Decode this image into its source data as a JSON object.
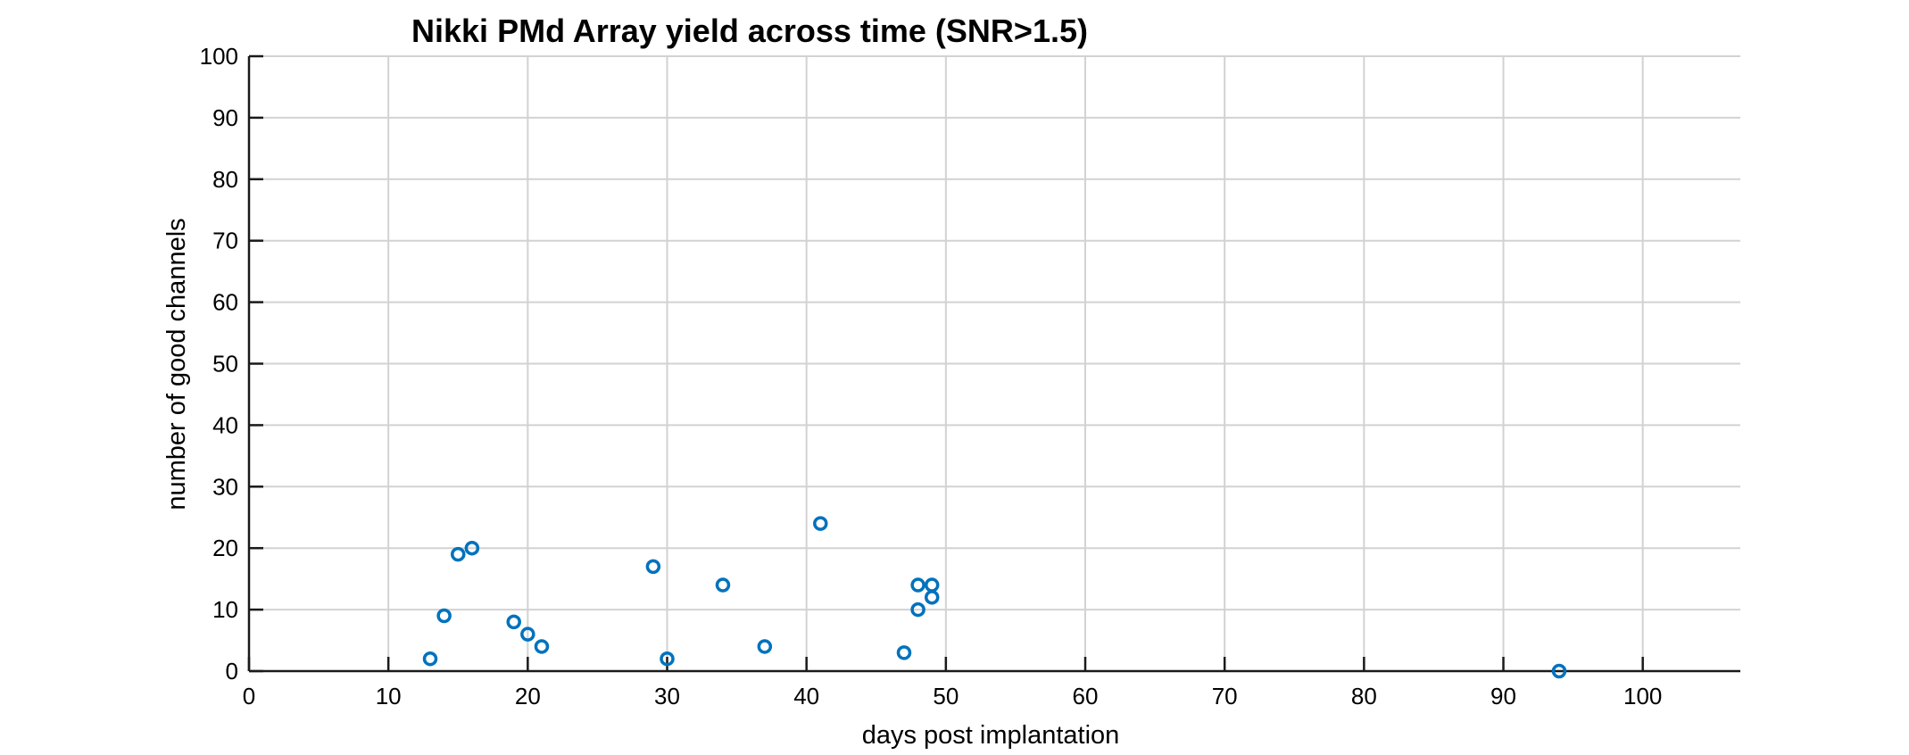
{
  "chart_data": {
    "type": "scatter",
    "title": "Nikki PMd Array yield across time (SNR>1.5)",
    "xlabel": "days post implantation",
    "ylabel": "number of good channels",
    "xlim": [
      0,
      107
    ],
    "ylim": [
      0,
      100
    ],
    "xticks": [
      0,
      10,
      20,
      30,
      40,
      50,
      60,
      70,
      80,
      90,
      100
    ],
    "yticks": [
      0,
      10,
      20,
      30,
      40,
      50,
      60,
      70,
      80,
      90,
      100
    ],
    "grid": true,
    "marker": "circle",
    "marker_color": "#0072BD",
    "series": [
      {
        "points": [
          {
            "x": 13,
            "y": 2
          },
          {
            "x": 14,
            "y": 9
          },
          {
            "x": 15,
            "y": 19
          },
          {
            "x": 16,
            "y": 20
          },
          {
            "x": 19,
            "y": 8
          },
          {
            "x": 20,
            "y": 6
          },
          {
            "x": 21,
            "y": 4
          },
          {
            "x": 29,
            "y": 17
          },
          {
            "x": 30,
            "y": 2
          },
          {
            "x": 34,
            "y": 14
          },
          {
            "x": 37,
            "y": 4
          },
          {
            "x": 41,
            "y": 24
          },
          {
            "x": 47,
            "y": 3
          },
          {
            "x": 48,
            "y": 14
          },
          {
            "x": 48,
            "y": 10
          },
          {
            "x": 49,
            "y": 14
          },
          {
            "x": 49,
            "y": 12
          },
          {
            "x": 94,
            "y": 0
          }
        ]
      }
    ]
  }
}
